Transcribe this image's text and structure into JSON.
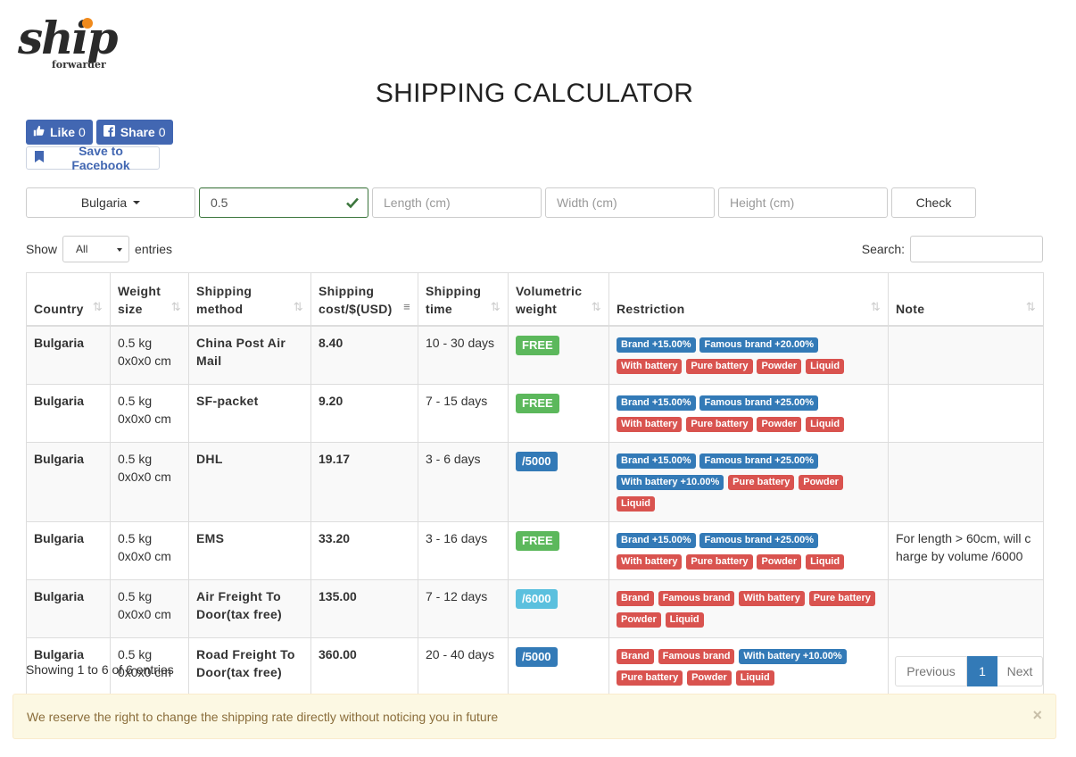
{
  "brand": {
    "logo_text": "ship",
    "logo_subtext": "forwarder"
  },
  "title": "SHIPPING CALCULATOR",
  "facebook": {
    "like_label": "Like",
    "like_count": "0",
    "share_label": "Share",
    "share_count": "0",
    "save_label": "Save to Facebook",
    "color": "#4267b2"
  },
  "form": {
    "country": "Bulgaria",
    "weight_value": "0.5",
    "length_placeholder": "Length (cm)",
    "width_placeholder": "Width (cm)",
    "height_placeholder": "Height (cm)",
    "check_label": "Check"
  },
  "table_controls": {
    "show_label": "Show",
    "length_value": "All",
    "entries_label": "entries",
    "search_label": "Search:"
  },
  "table": {
    "headers": [
      "Country",
      "Weight size",
      "Shipping cost/$(USD)",
      "Shipping time",
      "Volumetric weight",
      "Restriction",
      "Note"
    ],
    "header_lines": {
      "weight": [
        "Weight",
        "size"
      ],
      "method": [
        "Shipping",
        "method"
      ],
      "cost": [
        "Shipping",
        "cost/$(USD)"
      ],
      "time": [
        "Shipping",
        "time"
      ],
      "volumetric": [
        "Volumetric",
        "weight"
      ]
    },
    "rows": [
      {
        "country": "Bulgaria",
        "weight": "0.5 kg",
        "size": "0x0x0 cm",
        "method": "China Post Air Mail",
        "cost": "8.40",
        "time": "10 - 30 days",
        "volumetric": "FREE",
        "volumetric_color": "#5cb85c",
        "tags": [
          {
            "text": "Brand +15.00%",
            "color": "blue"
          },
          {
            "text": "Famous brand +20.00%",
            "color": "blue"
          },
          {
            "text": "With battery",
            "color": "red"
          },
          {
            "text": "Pure battery",
            "color": "red"
          },
          {
            "text": "Powder",
            "color": "red"
          },
          {
            "text": "Liquid",
            "color": "red"
          }
        ],
        "note": ""
      },
      {
        "country": "Bulgaria",
        "weight": "0.5 kg",
        "size": "0x0x0 cm",
        "method": "SF-packet",
        "cost": "9.20",
        "time": "7 - 15 days",
        "volumetric": "FREE",
        "volumetric_color": "#5cb85c",
        "tags": [
          {
            "text": "Brand +15.00%",
            "color": "blue"
          },
          {
            "text": "Famous brand +25.00%",
            "color": "blue"
          },
          {
            "text": "With battery",
            "color": "red"
          },
          {
            "text": "Pure battery",
            "color": "red"
          },
          {
            "text": "Powder",
            "color": "red"
          },
          {
            "text": "Liquid",
            "color": "red"
          }
        ],
        "note": ""
      },
      {
        "country": "Bulgaria",
        "weight": "0.5 kg",
        "size": "0x0x0 cm",
        "method": "DHL",
        "cost": "19.17",
        "time": "3 - 6 days",
        "volumetric": "/5000",
        "volumetric_color": "#337ab7",
        "tags": [
          {
            "text": "Brand +15.00%",
            "color": "blue"
          },
          {
            "text": "Famous brand +25.00%",
            "color": "blue"
          },
          {
            "text": "With battery +10.00%",
            "color": "blue"
          },
          {
            "text": "Pure battery",
            "color": "red"
          },
          {
            "text": "Powder",
            "color": "red"
          },
          {
            "text": "Liquid",
            "color": "red"
          }
        ],
        "note": ""
      },
      {
        "country": "Bulgaria",
        "weight": "0.5 kg",
        "size": "0x0x0 cm",
        "method": "EMS",
        "cost": "33.20",
        "time": "3 - 16 days",
        "volumetric": "FREE",
        "volumetric_color": "#5cb85c",
        "tags": [
          {
            "text": "Brand +15.00%",
            "color": "blue"
          },
          {
            "text": "Famous brand +25.00%",
            "color": "blue"
          },
          {
            "text": "With battery",
            "color": "red"
          },
          {
            "text": "Pure battery",
            "color": "red"
          },
          {
            "text": "Powder",
            "color": "red"
          },
          {
            "text": "Liquid",
            "color": "red"
          }
        ],
        "note_line1": "For length > 60cm, will c",
        "note_line2": "harge by volume /6000"
      },
      {
        "country": "Bulgaria",
        "weight": "0.5 kg",
        "size": "0x0x0 cm",
        "method": "Air Freight To Door(tax free)",
        "cost": "135.00",
        "time": "7 - 12 days",
        "volumetric": "/6000",
        "volumetric_color": "#5bc0de",
        "tags": [
          {
            "text": "Brand",
            "color": "red"
          },
          {
            "text": "Famous brand",
            "color": "red"
          },
          {
            "text": "With battery",
            "color": "red"
          },
          {
            "text": "Pure battery",
            "color": "red"
          },
          {
            "text": "Powder",
            "color": "red"
          },
          {
            "text": "Liquid",
            "color": "red"
          }
        ],
        "note": ""
      },
      {
        "country": "Bulgaria",
        "weight": "0.5 kg",
        "size": "0x0x0 cm",
        "method": "Road Freight To Door(tax free)",
        "cost": "360.00",
        "time": "20 - 40 days",
        "volumetric": "/5000",
        "volumetric_color": "#337ab7",
        "tags": [
          {
            "text": "Brand",
            "color": "red"
          },
          {
            "text": "Famous brand",
            "color": "red"
          },
          {
            "text": "With battery +10.00%",
            "color": "blue"
          },
          {
            "text": "Pure battery",
            "color": "red"
          },
          {
            "text": "Powder",
            "color": "red"
          },
          {
            "text": "Liquid",
            "color": "red"
          }
        ],
        "note": ""
      }
    ]
  },
  "footer": {
    "info": "Showing 1 to 6 of 6 entries",
    "prev_label": "Previous",
    "current_page": "1",
    "next_label": "Next"
  },
  "alert": {
    "text": "We reserve the right to change the shipping rate directly without noticing you in future",
    "close": "×"
  },
  "colors": {
    "blue": "#337ab7",
    "red": "#d9534f",
    "green": "#5cb85c",
    "light_blue": "#5bc0de",
    "success_border": "#3c763d"
  }
}
